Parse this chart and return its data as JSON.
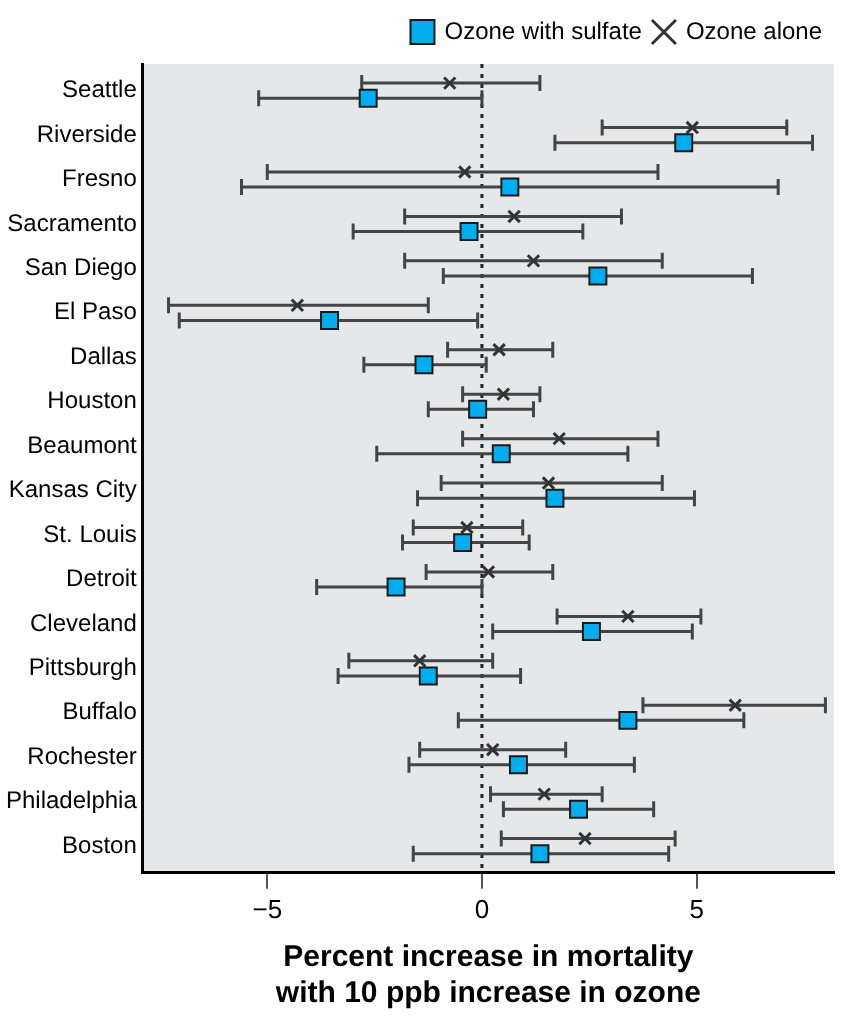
{
  "chart_data": {
    "type": "scatter",
    "orientation": "horizontal",
    "xlabel": "Percent increase in mortality\nwith 10 ppb increase in ozone",
    "categories": [
      "Seattle",
      "Riverside",
      "Fresno",
      "Sacramento",
      "San Diego",
      "El Paso",
      "Dallas",
      "Houston",
      "Beaumont",
      "Kansas City",
      "St. Louis",
      "Detroit",
      "Cleveland",
      "Pittsburgh",
      "Buffalo",
      "Rochester",
      "Philadelphia",
      "Boston"
    ],
    "xlim": [
      -7.9,
      8.2
    ],
    "xticks": [
      {
        "value": -5,
        "label": "−5"
      },
      0,
      5
    ],
    "grid": false,
    "legend": "top right",
    "ref_lines": [
      {
        "axis": "x",
        "value": 0,
        "line_style": "dotted",
        "color": "#222222"
      }
    ],
    "series": [
      {
        "name": "Ozone with sulfate",
        "color": "#00aeef",
        "marker": "square",
        "values": [
          -2.65,
          4.7,
          0.65,
          -0.3,
          2.7,
          -3.55,
          -1.35,
          -0.1,
          0.45,
          1.7,
          -0.45,
          -2.0,
          2.55,
          -1.25,
          3.4,
          0.85,
          2.25,
          1.35
        ],
        "errors": [
          [
            -5.2,
            0
          ],
          [
            1.7,
            7.7
          ],
          [
            -5.6,
            6.9
          ],
          [
            -3.0,
            2.35
          ],
          [
            -0.9,
            6.3
          ],
          [
            -7.05,
            -0.1
          ],
          [
            -2.75,
            0.1
          ],
          [
            -1.25,
            1.2
          ],
          [
            -2.45,
            3.4
          ],
          [
            -1.5,
            4.95
          ],
          [
            -1.85,
            1.1
          ],
          [
            -3.85,
            0
          ],
          [
            0.25,
            4.9
          ],
          [
            -3.35,
            0.9
          ],
          [
            -0.55,
            6.1
          ],
          [
            -1.7,
            3.55
          ],
          [
            0.5,
            4.0
          ],
          [
            -1.6,
            4.35
          ]
        ]
      },
      {
        "name": "Ozone alone",
        "color": "#333333",
        "marker": "cross",
        "values": [
          -0.75,
          4.9,
          -0.4,
          0.75,
          1.2,
          -4.3,
          0.4,
          0.5,
          1.8,
          1.55,
          -0.35,
          0.15,
          3.4,
          -1.45,
          5.9,
          0.25,
          1.45,
          2.4
        ],
        "errors": [
          [
            -2.8,
            1.35
          ],
          [
            2.8,
            7.1
          ],
          [
            -5.0,
            4.1
          ],
          [
            -1.8,
            3.25
          ],
          [
            -1.8,
            4.2
          ],
          [
            -7.3,
            -1.25
          ],
          [
            -0.8,
            1.65
          ],
          [
            -0.45,
            1.35
          ],
          [
            -0.45,
            4.1
          ],
          [
            -0.95,
            4.2
          ],
          [
            -1.6,
            0.95
          ],
          [
            -1.3,
            1.65
          ],
          [
            1.75,
            5.1
          ],
          [
            -3.1,
            0.25
          ],
          [
            3.75,
            8.0
          ],
          [
            -1.45,
            1.95
          ],
          [
            0.2,
            2.8
          ],
          [
            0.45,
            4.5
          ]
        ]
      }
    ]
  }
}
